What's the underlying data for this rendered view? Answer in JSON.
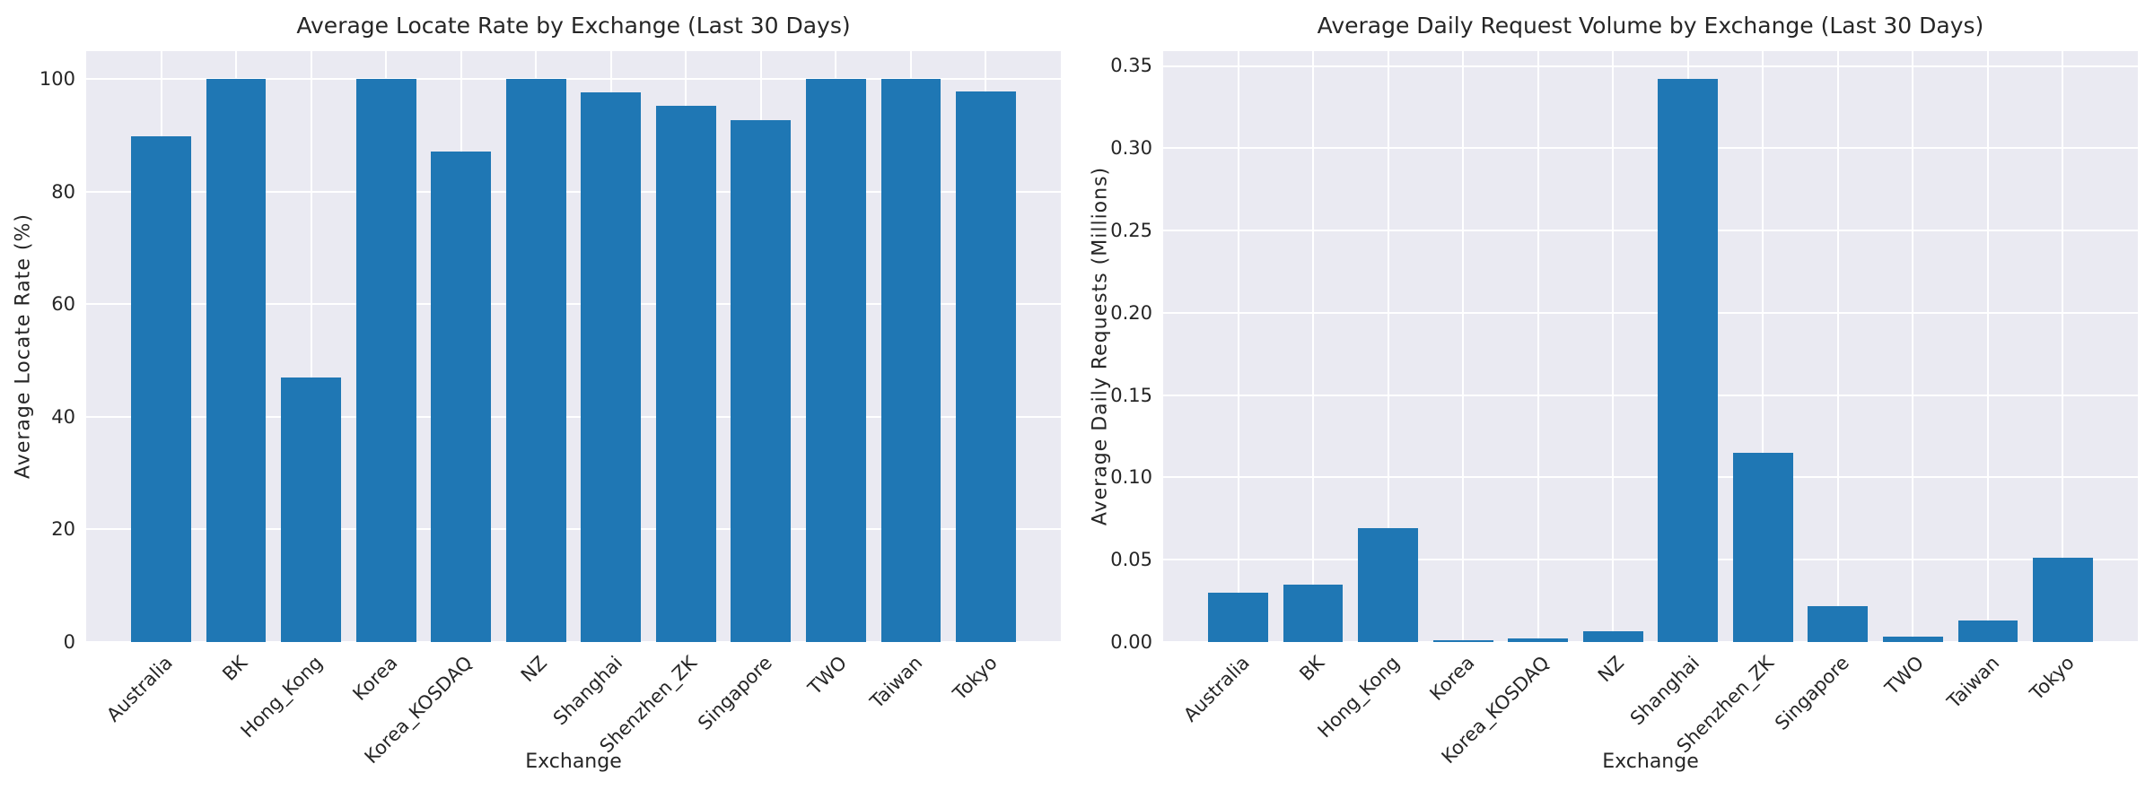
{
  "figure": {
    "background": "#ffffff",
    "plot_background": "#eaeaf2",
    "grid_color": "#ffffff",
    "bar_color": "#1f77b4",
    "text_color": "#262626"
  },
  "chart_data": [
    {
      "type": "bar",
      "title": "Average Locate Rate by Exchange (Last 30 Days)",
      "xlabel": "Exchange",
      "ylabel": "Average Locate Rate (%)",
      "categories": [
        "Australia",
        "BK",
        "Hong_Kong",
        "Korea",
        "Korea_KOSDAQ",
        "NZ",
        "Shanghai",
        "Shenzhen_ZK",
        "Singapore",
        "TWO",
        "Taiwan",
        "Tokyo"
      ],
      "values": [
        89.8,
        100,
        47,
        100,
        87.1,
        100,
        97.6,
        95.3,
        92.7,
        100,
        100,
        97.8
      ],
      "ylim": [
        0,
        105
      ],
      "yticks": [
        0,
        20,
        40,
        60,
        80,
        100
      ],
      "ytick_labels": [
        "0",
        "20",
        "40",
        "60",
        "80",
        "100"
      ],
      "grid": true,
      "legend": null,
      "bar_width": 0.8,
      "xtick_rotation": 45
    },
    {
      "type": "bar",
      "title": "Average Daily Request Volume by Exchange (Last 30 Days)",
      "xlabel": "Exchange",
      "ylabel": "Average Daily Requests (Millions)",
      "categories": [
        "Australia",
        "BK",
        "Hong_Kong",
        "Korea",
        "Korea_KOSDAQ",
        "NZ",
        "Shanghai",
        "Shenzhen_ZK",
        "Singapore",
        "TWO",
        "Taiwan",
        "Tokyo"
      ],
      "values": [
        0.03,
        0.035,
        0.069,
        0.001,
        0.002,
        0.0065,
        0.342,
        0.115,
        0.022,
        0.003,
        0.013,
        0.051
      ],
      "ylim": [
        0,
        0.359
      ],
      "yticks": [
        0.0,
        0.05,
        0.1,
        0.15,
        0.2,
        0.25,
        0.3,
        0.35
      ],
      "ytick_labels": [
        "0.00",
        "0.05",
        "0.10",
        "0.15",
        "0.20",
        "0.25",
        "0.30",
        "0.35"
      ],
      "grid": true,
      "legend": null,
      "bar_width": 0.8,
      "xtick_rotation": 45
    }
  ]
}
